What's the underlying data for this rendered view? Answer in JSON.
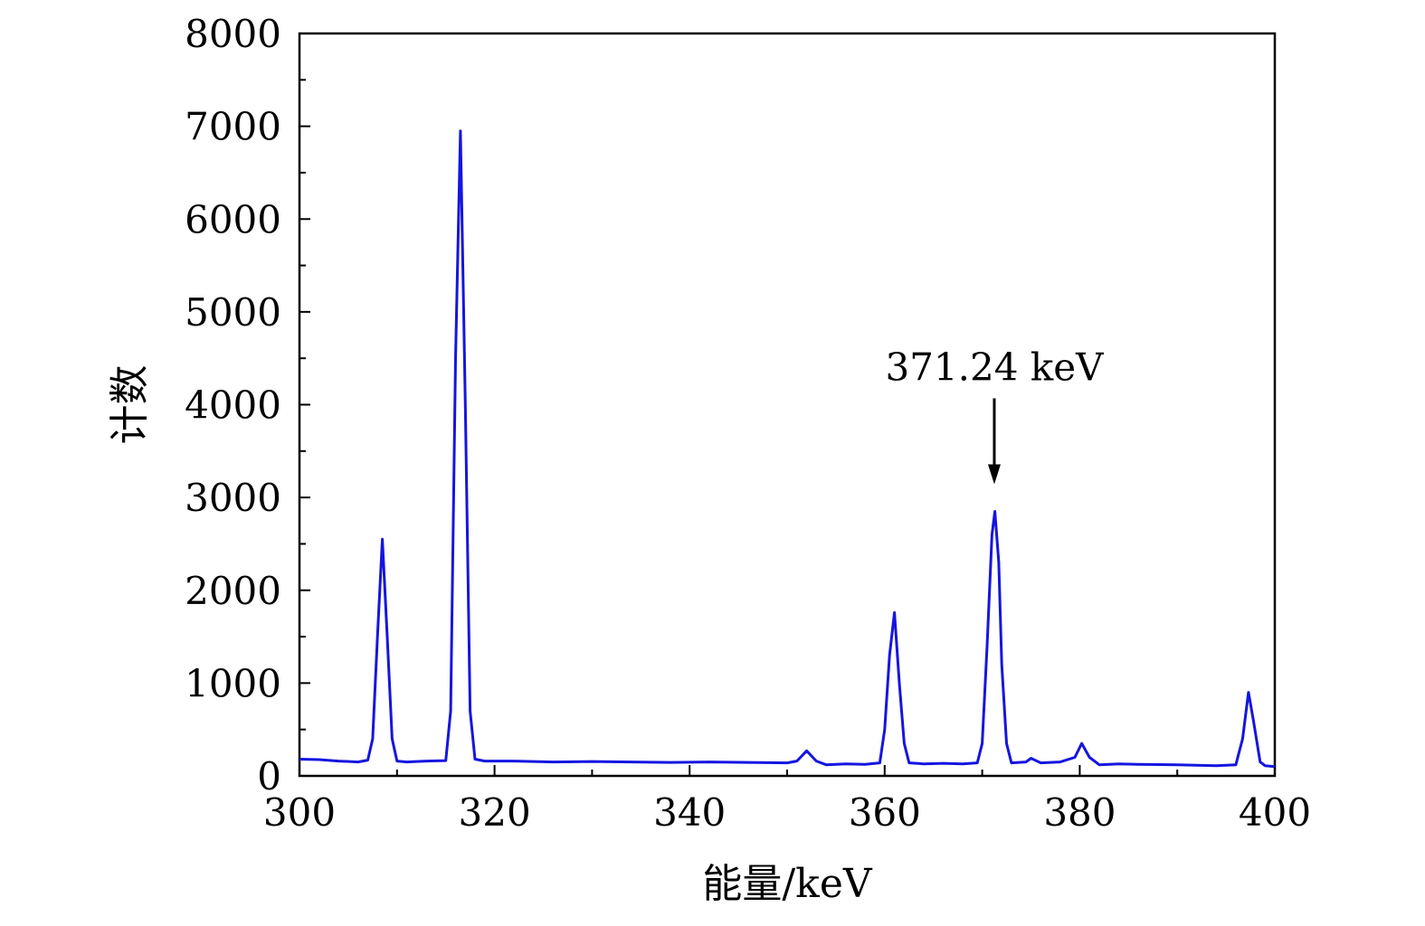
{
  "chart_data": {
    "type": "line",
    "title": "",
    "xlabel": "能量/keV",
    "ylabel": "计数",
    "xlim": [
      300,
      400
    ],
    "ylim": [
      0,
      8000
    ],
    "xticks": [
      300,
      320,
      340,
      360,
      380,
      400
    ],
    "xtick_labels": [
      "300",
      "320",
      "340",
      "360",
      "380",
      "400"
    ],
    "yticks": [
      0,
      1000,
      2000,
      3000,
      4000,
      5000,
      6000,
      7000,
      8000
    ],
    "ytick_labels": [
      "0",
      "1000",
      "2000",
      "3000",
      "4000",
      "5000",
      "6000",
      "7000",
      "8000"
    ],
    "grid": false,
    "line_color": "#1515e0",
    "series": [
      {
        "x": [
          300,
          302,
          304,
          306,
          307,
          307.5,
          308,
          308.5,
          309,
          309.5,
          310,
          311,
          313,
          315,
          315.5,
          316,
          316.5,
          317,
          317.5,
          318,
          319,
          322,
          326,
          330,
          334,
          338,
          342,
          346,
          350,
          351,
          352,
          353,
          354,
          356,
          358,
          359.5,
          360,
          360.5,
          361,
          361.5,
          362,
          362.5,
          364,
          366,
          368,
          369.5,
          370,
          370.5,
          371,
          371.3,
          371.7,
          372,
          372.5,
          373,
          374.5,
          375,
          376,
          378,
          379.5,
          380.2,
          381,
          382,
          384,
          386,
          390,
          394,
          396,
          396.7,
          397.3,
          397.8,
          398.5,
          399,
          400
        ],
        "y": [
          180,
          175,
          160,
          150,
          170,
          400,
          1500,
          2550,
          1500,
          400,
          160,
          150,
          160,
          165,
          700,
          4500,
          6950,
          4000,
          700,
          180,
          160,
          160,
          150,
          155,
          150,
          145,
          150,
          145,
          140,
          160,
          270,
          160,
          120,
          130,
          125,
          140,
          500,
          1300,
          1760,
          1000,
          350,
          140,
          130,
          135,
          130,
          140,
          350,
          1400,
          2600,
          2850,
          2300,
          1200,
          350,
          140,
          150,
          190,
          140,
          150,
          200,
          350,
          200,
          120,
          130,
          125,
          120,
          110,
          120,
          400,
          900,
          600,
          150,
          110,
          100
        ]
      }
    ],
    "annotations": [
      {
        "text": "371.24 keV",
        "x": 371.24,
        "y": 2850,
        "arrow": true
      }
    ]
  }
}
